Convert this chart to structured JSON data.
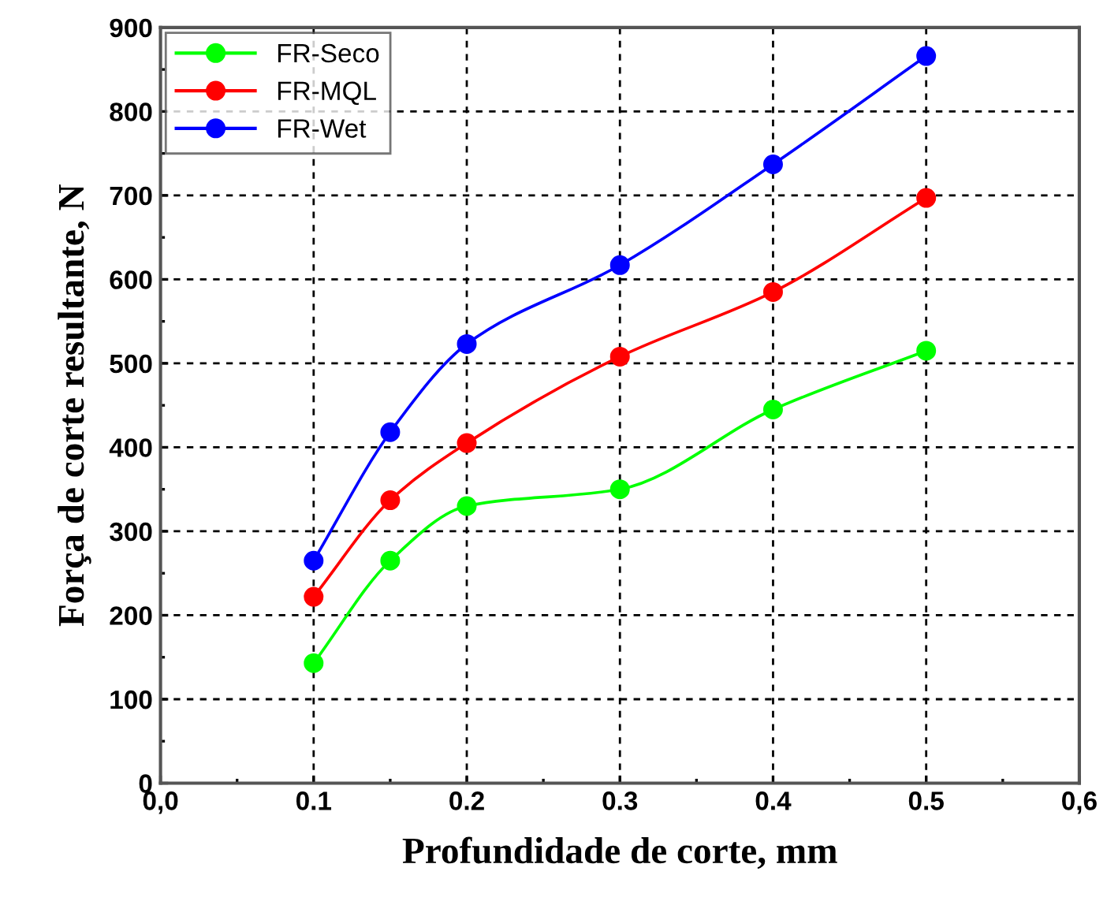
{
  "chart_data": {
    "type": "line",
    "xlabel": "Profundidade de corte, mm",
    "ylabel": "Força de corte resultante, N",
    "x": [
      0.1,
      0.15,
      0.2,
      0.3,
      0.4,
      0.5
    ],
    "series": [
      {
        "name": "FR-Seco",
        "color": "#00ff00",
        "values": [
          143,
          265,
          330,
          350,
          445,
          515
        ]
      },
      {
        "name": "FR-MQL",
        "color": "#ff0000",
        "values": [
          222,
          337,
          405,
          508,
          585,
          697
        ]
      },
      {
        "name": "FR-Wet",
        "color": "#0000ff",
        "values": [
          265,
          418,
          523,
          617,
          737,
          866
        ]
      }
    ],
    "xlim": [
      0,
      0.6
    ],
    "xticks": [
      {
        "value": 0,
        "label": "0,0"
      },
      0.1,
      0.2,
      0.3,
      0.4,
      0.5,
      {
        "value": 0.6,
        "label": "0,6"
      }
    ],
    "ylim": [
      0,
      900
    ],
    "yticks": [
      0,
      100,
      200,
      300,
      400,
      500,
      600,
      700,
      800,
      900
    ],
    "grid": true,
    "legend": "top left",
    "marker": "circle",
    "line_style": "solid"
  }
}
